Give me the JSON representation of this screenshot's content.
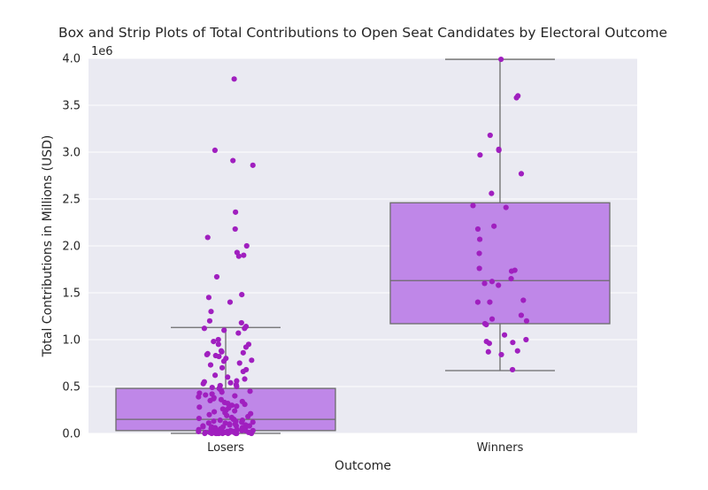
{
  "chart_data": {
    "type": "box",
    "title": "Box and Strip Plots of Total Contributions to Open Seat Candidates by Electoral Outcome",
    "xlabel": "Outcome",
    "ylabel": "Total Contributions in Millions (USD)",
    "offset_label": "1e6",
    "ylim": [
      0,
      4.0
    ],
    "yticks": [
      "0.0",
      "0.5",
      "1.0",
      "1.5",
      "2.0",
      "2.5",
      "3.0",
      "3.5",
      "4.0"
    ],
    "categories": [
      "Losers",
      "Winners"
    ],
    "grid": true,
    "colors": {
      "box_fill": "#bf87e8",
      "box_line": "#6b6b6b",
      "point": "#a01fbf",
      "plot_bg": "#eaeaf2",
      "grid": "#ffffff"
    },
    "boxes": [
      {
        "category": "Losers",
        "whisker_low": 0.0,
        "q1": 0.03,
        "median": 0.15,
        "q3": 0.48,
        "whisker_high": 1.13
      },
      {
        "category": "Winners",
        "whisker_low": 0.67,
        "q1": 1.17,
        "median": 1.63,
        "q3": 2.46,
        "whisker_high": 3.99
      }
    ],
    "points": [
      {
        "category": "Losers",
        "values": [
          3.78,
          3.02,
          2.91,
          2.86,
          2.36,
          2.18,
          2.09,
          2.0,
          1.93,
          1.9,
          1.89,
          1.67,
          1.48,
          1.45,
          1.4,
          1.3,
          1.2,
          1.18,
          1.14,
          1.12,
          1.12,
          1.1,
          1.07,
          1.0,
          0.98,
          0.95,
          0.95,
          0.92,
          0.88,
          0.87,
          0.86,
          0.85,
          0.84,
          0.83,
          0.82,
          0.8,
          0.78,
          0.77,
          0.75,
          0.73,
          0.7,
          0.68,
          0.66,
          0.62,
          0.6,
          0.58,
          0.56,
          0.55,
          0.54,
          0.53,
          0.52,
          0.51,
          0.5,
          0.49,
          0.48,
          0.47,
          0.46,
          0.45,
          0.44,
          0.43,
          0.42,
          0.41,
          0.4,
          0.39,
          0.38,
          0.37,
          0.36,
          0.35,
          0.34,
          0.33,
          0.32,
          0.31,
          0.3,
          0.29,
          0.28,
          0.27,
          0.26,
          0.25,
          0.24,
          0.23,
          0.22,
          0.21,
          0.2,
          0.19,
          0.18,
          0.17,
          0.16,
          0.15,
          0.15,
          0.14,
          0.14,
          0.13,
          0.13,
          0.12,
          0.12,
          0.11,
          0.11,
          0.1,
          0.1,
          0.09,
          0.09,
          0.08,
          0.08,
          0.08,
          0.07,
          0.07,
          0.07,
          0.06,
          0.06,
          0.06,
          0.05,
          0.05,
          0.05,
          0.05,
          0.04,
          0.04,
          0.04,
          0.04,
          0.03,
          0.03,
          0.03,
          0.03,
          0.03,
          0.02,
          0.02,
          0.02,
          0.02,
          0.02,
          0.02,
          0.01,
          0.01,
          0.01,
          0.01,
          0.01,
          0.01,
          0.01,
          0.01,
          0.0,
          0.0,
          0.0,
          0.0,
          0.0,
          0.0,
          0.0,
          0.0,
          0.0,
          0.0,
          0.0
        ]
      },
      {
        "category": "Winners",
        "values": [
          3.99,
          3.6,
          3.58,
          3.18,
          3.03,
          3.02,
          2.97,
          2.77,
          2.56,
          2.43,
          2.41,
          2.21,
          2.18,
          2.07,
          1.92,
          1.76,
          1.74,
          1.73,
          1.65,
          1.62,
          1.6,
          1.58,
          1.42,
          1.4,
          1.4,
          1.26,
          1.22,
          1.2,
          1.17,
          1.16,
          1.05,
          1.0,
          0.98,
          0.97,
          0.96,
          0.88,
          0.87,
          0.84,
          0.68
        ]
      }
    ]
  }
}
